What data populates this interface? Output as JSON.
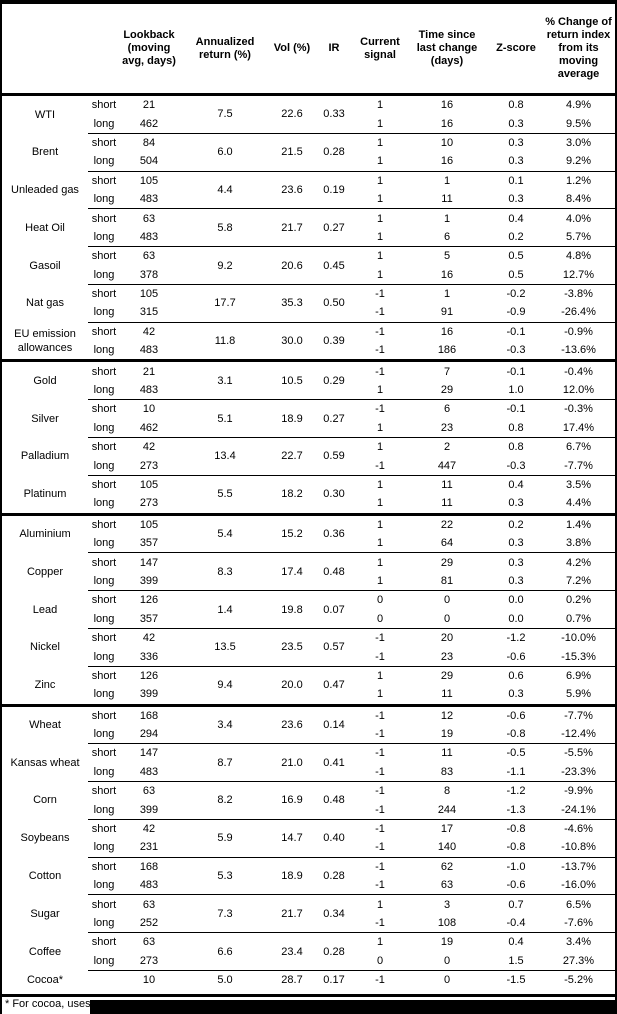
{
  "colors": {
    "background": "#ffffff",
    "text": "#000000",
    "border": "#000000"
  },
  "table": {
    "columns": [
      {
        "id": "name",
        "label": ""
      },
      {
        "id": "position",
        "label": ""
      },
      {
        "id": "lookback",
        "label": "Lookback\n(moving\navg, days)"
      },
      {
        "id": "annualized",
        "label": "Annualized\nreturn (%)"
      },
      {
        "id": "vol",
        "label": "Vol (%)"
      },
      {
        "id": "ir",
        "label": "IR"
      },
      {
        "id": "signal",
        "label": "Current\nsignal"
      },
      {
        "id": "time",
        "label": "Time since\nlast change\n(days)"
      },
      {
        "id": "zscore",
        "label": "Z-score"
      },
      {
        "id": "pct",
        "label": "% Change of\nreturn index\nfrom its\nmoving\naverage"
      }
    ],
    "sections": [
      {
        "commodities": [
          {
            "name": "WTI",
            "annualized": "7.5",
            "vol": "22.6",
            "ir": "0.33",
            "rows": [
              {
                "position": "short",
                "lookback": "21",
                "signal": "1",
                "time": "16",
                "zscore": "0.8",
                "pct": "4.9%"
              },
              {
                "position": "long",
                "lookback": "462",
                "signal": "1",
                "time": "16",
                "zscore": "0.3",
                "pct": "9.5%"
              }
            ]
          },
          {
            "name": "Brent",
            "annualized": "6.0",
            "vol": "21.5",
            "ir": "0.28",
            "rows": [
              {
                "position": "short",
                "lookback": "84",
                "signal": "1",
                "time": "10",
                "zscore": "0.3",
                "pct": "3.0%"
              },
              {
                "position": "long",
                "lookback": "504",
                "signal": "1",
                "time": "16",
                "zscore": "0.3",
                "pct": "9.2%"
              }
            ]
          },
          {
            "name": "Unleaded gas",
            "annualized": "4.4",
            "vol": "23.6",
            "ir": "0.19",
            "rows": [
              {
                "position": "short",
                "lookback": "105",
                "signal": "1",
                "time": "1",
                "zscore": "0.1",
                "pct": "1.2%"
              },
              {
                "position": "long",
                "lookback": "483",
                "signal": "1",
                "time": "11",
                "zscore": "0.3",
                "pct": "8.4%"
              }
            ]
          },
          {
            "name": "Heat Oil",
            "annualized": "5.8",
            "vol": "21.7",
            "ir": "0.27",
            "rows": [
              {
                "position": "short",
                "lookback": "63",
                "signal": "1",
                "time": "1",
                "zscore": "0.4",
                "pct": "4.0%"
              },
              {
                "position": "long",
                "lookback": "483",
                "signal": "1",
                "time": "6",
                "zscore": "0.2",
                "pct": "5.7%"
              }
            ]
          },
          {
            "name": "Gasoil",
            "annualized": "9.2",
            "vol": "20.6",
            "ir": "0.45",
            "rows": [
              {
                "position": "short",
                "lookback": "63",
                "signal": "1",
                "time": "5",
                "zscore": "0.5",
                "pct": "4.8%"
              },
              {
                "position": "long",
                "lookback": "378",
                "signal": "1",
                "time": "16",
                "zscore": "0.5",
                "pct": "12.7%"
              }
            ]
          },
          {
            "name": "Nat gas",
            "annualized": "17.7",
            "vol": "35.3",
            "ir": "0.50",
            "rows": [
              {
                "position": "short",
                "lookback": "105",
                "signal": "-1",
                "time": "1",
                "zscore": "-0.2",
                "pct": "-3.8%"
              },
              {
                "position": "long",
                "lookback": "315",
                "signal": "-1",
                "time": "91",
                "zscore": "-0.9",
                "pct": "-26.4%"
              }
            ]
          },
          {
            "name": "EU emission allowances",
            "annualized": "11.8",
            "vol": "30.0",
            "ir": "0.39",
            "rows": [
              {
                "position": "short",
                "lookback": "42",
                "signal": "-1",
                "time": "16",
                "zscore": "-0.1",
                "pct": "-0.9%"
              },
              {
                "position": "long",
                "lookback": "483",
                "signal": "-1",
                "time": "186",
                "zscore": "-0.3",
                "pct": "-13.6%"
              }
            ]
          }
        ]
      },
      {
        "commodities": [
          {
            "name": "Gold",
            "annualized": "3.1",
            "vol": "10.5",
            "ir": "0.29",
            "rows": [
              {
                "position": "short",
                "lookback": "21",
                "signal": "-1",
                "time": "7",
                "zscore": "-0.1",
                "pct": "-0.4%"
              },
              {
                "position": "long",
                "lookback": "483",
                "signal": "1",
                "time": "29",
                "zscore": "1.0",
                "pct": "12.0%"
              }
            ]
          },
          {
            "name": "Silver",
            "annualized": "5.1",
            "vol": "18.9",
            "ir": "0.27",
            "rows": [
              {
                "position": "short",
                "lookback": "10",
                "signal": "-1",
                "time": "6",
                "zscore": "-0.1",
                "pct": "-0.3%"
              },
              {
                "position": "long",
                "lookback": "462",
                "signal": "1",
                "time": "23",
                "zscore": "0.8",
                "pct": "17.4%"
              }
            ]
          },
          {
            "name": "Palladium",
            "annualized": "13.4",
            "vol": "22.7",
            "ir": "0.59",
            "rows": [
              {
                "position": "short",
                "lookback": "42",
                "signal": "1",
                "time": "2",
                "zscore": "0.8",
                "pct": "6.7%"
              },
              {
                "position": "long",
                "lookback": "273",
                "signal": "-1",
                "time": "447",
                "zscore": "-0.3",
                "pct": "-7.7%"
              }
            ]
          },
          {
            "name": "Platinum",
            "annualized": "5.5",
            "vol": "18.2",
            "ir": "0.30",
            "rows": [
              {
                "position": "short",
                "lookback": "105",
                "signal": "1",
                "time": "11",
                "zscore": "0.4",
                "pct": "3.5%"
              },
              {
                "position": "long",
                "lookback": "273",
                "signal": "1",
                "time": "11",
                "zscore": "0.3",
                "pct": "4.4%"
              }
            ]
          }
        ]
      },
      {
        "commodities": [
          {
            "name": "Aluminium",
            "annualized": "5.4",
            "vol": "15.2",
            "ir": "0.36",
            "rows": [
              {
                "position": "short",
                "lookback": "105",
                "signal": "1",
                "time": "22",
                "zscore": "0.2",
                "pct": "1.4%"
              },
              {
                "position": "long",
                "lookback": "357",
                "signal": "1",
                "time": "64",
                "zscore": "0.3",
                "pct": "3.8%"
              }
            ]
          },
          {
            "name": "Copper",
            "annualized": "8.3",
            "vol": "17.4",
            "ir": "0.48",
            "rows": [
              {
                "position": "short",
                "lookback": "147",
                "signal": "1",
                "time": "29",
                "zscore": "0.3",
                "pct": "4.2%"
              },
              {
                "position": "long",
                "lookback": "399",
                "signal": "1",
                "time": "81",
                "zscore": "0.3",
                "pct": "7.2%"
              }
            ]
          },
          {
            "name": "Lead",
            "annualized": "1.4",
            "vol": "19.8",
            "ir": "0.07",
            "rows": [
              {
                "position": "short",
                "lookback": "126",
                "signal": "0",
                "time": "0",
                "zscore": "0.0",
                "pct": "0.2%"
              },
              {
                "position": "long",
                "lookback": "357",
                "signal": "0",
                "time": "0",
                "zscore": "0.0",
                "pct": "0.7%"
              }
            ]
          },
          {
            "name": "Nickel",
            "annualized": "13.5",
            "vol": "23.5",
            "ir": "0.57",
            "rows": [
              {
                "position": "short",
                "lookback": "42",
                "signal": "-1",
                "time": "20",
                "zscore": "-1.2",
                "pct": "-10.0%"
              },
              {
                "position": "long",
                "lookback": "336",
                "signal": "-1",
                "time": "23",
                "zscore": "-0.6",
                "pct": "-15.3%"
              }
            ]
          },
          {
            "name": "Zinc",
            "annualized": "9.4",
            "vol": "20.0",
            "ir": "0.47",
            "rows": [
              {
                "position": "short",
                "lookback": "126",
                "signal": "1",
                "time": "29",
                "zscore": "0.6",
                "pct": "6.9%"
              },
              {
                "position": "long",
                "lookback": "399",
                "signal": "1",
                "time": "11",
                "zscore": "0.3",
                "pct": "5.9%"
              }
            ]
          }
        ]
      },
      {
        "commodities": [
          {
            "name": "Wheat",
            "annualized": "3.4",
            "vol": "23.6",
            "ir": "0.14",
            "rows": [
              {
                "position": "short",
                "lookback": "168",
                "signal": "-1",
                "time": "12",
                "zscore": "-0.6",
                "pct": "-7.7%"
              },
              {
                "position": "long",
                "lookback": "294",
                "signal": "-1",
                "time": "19",
                "zscore": "-0.8",
                "pct": "-12.4%"
              }
            ]
          },
          {
            "name": "Kansas wheat",
            "annualized": "8.7",
            "vol": "21.0",
            "ir": "0.41",
            "rows": [
              {
                "position": "short",
                "lookback": "147",
                "signal": "-1",
                "time": "11",
                "zscore": "-0.5",
                "pct": "-5.5%"
              },
              {
                "position": "long",
                "lookback": "483",
                "signal": "-1",
                "time": "83",
                "zscore": "-1.1",
                "pct": "-23.3%"
              }
            ]
          },
          {
            "name": "Corn",
            "annualized": "8.2",
            "vol": "16.9",
            "ir": "0.48",
            "rows": [
              {
                "position": "short",
                "lookback": "63",
                "signal": "-1",
                "time": "8",
                "zscore": "-1.2",
                "pct": "-9.9%"
              },
              {
                "position": "long",
                "lookback": "399",
                "signal": "-1",
                "time": "244",
                "zscore": "-1.3",
                "pct": "-24.1%"
              }
            ]
          },
          {
            "name": "Soybeans",
            "annualized": "5.9",
            "vol": "14.7",
            "ir": "0.40",
            "rows": [
              {
                "position": "short",
                "lookback": "42",
                "signal": "-1",
                "time": "17",
                "zscore": "-0.8",
                "pct": "-4.6%"
              },
              {
                "position": "long",
                "lookback": "231",
                "signal": "-1",
                "time": "140",
                "zscore": "-0.8",
                "pct": "-10.8%"
              }
            ]
          },
          {
            "name": "Cotton",
            "annualized": "5.3",
            "vol": "18.9",
            "ir": "0.28",
            "rows": [
              {
                "position": "short",
                "lookback": "168",
                "signal": "-1",
                "time": "62",
                "zscore": "-1.0",
                "pct": "-13.7%"
              },
              {
                "position": "long",
                "lookback": "483",
                "signal": "-1",
                "time": "63",
                "zscore": "-0.6",
                "pct": "-16.0%"
              }
            ]
          },
          {
            "name": "Sugar",
            "annualized": "7.3",
            "vol": "21.7",
            "ir": "0.34",
            "rows": [
              {
                "position": "short",
                "lookback": "63",
                "signal": "1",
                "time": "3",
                "zscore": "0.7",
                "pct": "6.5%"
              },
              {
                "position": "long",
                "lookback": "252",
                "signal": "-1",
                "time": "108",
                "zscore": "-0.4",
                "pct": "-7.6%"
              }
            ]
          },
          {
            "name": "Coffee",
            "annualized": "6.6",
            "vol": "23.4",
            "ir": "0.28",
            "rows": [
              {
                "position": "short",
                "lookback": "63",
                "signal": "1",
                "time": "19",
                "zscore": "0.4",
                "pct": "3.4%"
              },
              {
                "position": "long",
                "lookback": "273",
                "signal": "0",
                "time": "0",
                "zscore": "1.5",
                "pct": "27.3%"
              }
            ]
          },
          {
            "name": "Cocoa*",
            "annualized": "5.0",
            "vol": "28.7",
            "ir": "0.17",
            "rows": [
              {
                "position": "",
                "lookback": "10",
                "signal": "-1",
                "time": "0",
                "zscore": "-1.5",
                "pct": "-5.2%"
              }
            ]
          }
        ]
      }
    ]
  },
  "footnote": {
    "text": "* For cocoa, uses o",
    "redacted": true
  }
}
